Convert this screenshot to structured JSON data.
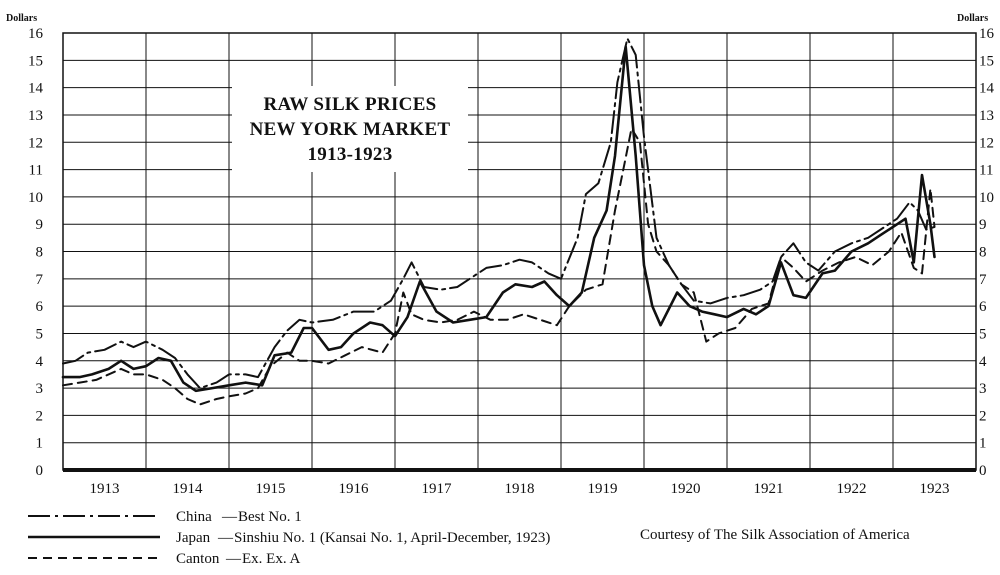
{
  "chart_data": {
    "type": "line",
    "title": [
      "RAW SILK PRICES",
      "NEW YORK MARKET",
      "1913-1923"
    ],
    "ylabel_left": "Dollars",
    "ylabel_right": "Dollars",
    "ylim": [
      0,
      16
    ],
    "yticks": [
      "0",
      "1",
      "2",
      "3",
      "4",
      "5",
      "6",
      "7",
      "8",
      "9",
      "10",
      "11",
      "12",
      "13",
      "14",
      "15",
      "16"
    ],
    "xlim": [
      1913,
      1924
    ],
    "year_labels": [
      "1913",
      "1914",
      "1915",
      "1916",
      "1917",
      "1918",
      "1919",
      "1920",
      "1921",
      "1922",
      "1923"
    ],
    "grid": true,
    "legend_position": "bottom-left",
    "series": [
      {
        "name": "China",
        "label_prefix": "China",
        "label_suffix": "Best No. 1",
        "style": "dash-dot",
        "x": [
          1913.0,
          1913.15,
          1913.3,
          1913.5,
          1913.7,
          1913.85,
          1914.0,
          1914.2,
          1914.35,
          1914.5,
          1914.65,
          1914.85,
          1915.0,
          1915.2,
          1915.35,
          1915.55,
          1915.7,
          1915.85,
          1916.0,
          1916.25,
          1916.5,
          1916.75,
          1916.95,
          1917.1,
          1917.2,
          1917.35,
          1917.55,
          1917.75,
          1917.9,
          1918.1,
          1918.3,
          1918.5,
          1918.65,
          1918.85,
          1919.0,
          1919.2,
          1919.3,
          1919.45,
          1919.6,
          1919.68,
          1919.8,
          1919.9,
          1920.0,
          1920.15,
          1920.3,
          1920.45,
          1920.6,
          1920.8,
          1921.0,
          1921.2,
          1921.4,
          1921.55,
          1921.65,
          1921.8,
          1921.95,
          1922.1,
          1922.3,
          1922.5,
          1922.7,
          1922.9,
          1923.05,
          1923.2,
          1923.3,
          1923.4,
          1923.5
        ],
        "y": [
          3.9,
          4.0,
          4.3,
          4.4,
          4.7,
          4.5,
          4.7,
          4.4,
          4.1,
          3.5,
          3.0,
          3.2,
          3.5,
          3.5,
          3.4,
          4.5,
          5.1,
          5.5,
          5.4,
          5.5,
          5.8,
          5.8,
          6.2,
          7.0,
          7.6,
          6.7,
          6.6,
          6.7,
          7.0,
          7.4,
          7.5,
          7.7,
          7.6,
          7.2,
          7.0,
          8.5,
          10.1,
          10.5,
          12.0,
          14.2,
          15.8,
          15.2,
          12.2,
          8.5,
          7.5,
          6.8,
          6.2,
          6.1,
          6.3,
          6.4,
          6.6,
          6.9,
          7.8,
          8.3,
          7.6,
          7.3,
          8.0,
          8.3,
          8.5,
          8.9,
          9.2,
          9.8,
          9.5,
          8.8,
          8.9
        ]
      },
      {
        "name": "Japan",
        "label_prefix": "Japan",
        "label_suffix": "Sinshiu No. 1 (Kansai No. 1, April-December, 1923)",
        "style": "solid",
        "x": [
          1913.0,
          1913.2,
          1913.35,
          1913.55,
          1913.7,
          1913.85,
          1914.0,
          1914.15,
          1914.3,
          1914.45,
          1914.6,
          1914.8,
          1915.0,
          1915.2,
          1915.4,
          1915.55,
          1915.75,
          1915.9,
          1916.0,
          1916.2,
          1916.35,
          1916.5,
          1916.7,
          1916.85,
          1917.0,
          1917.15,
          1917.3,
          1917.5,
          1917.7,
          1917.9,
          1918.1,
          1918.3,
          1918.45,
          1918.65,
          1918.8,
          1918.95,
          1919.1,
          1919.25,
          1919.4,
          1919.55,
          1919.65,
          1919.78,
          1919.9,
          1920.0,
          1920.1,
          1920.2,
          1920.4,
          1920.55,
          1920.7,
          1920.85,
          1921.0,
          1921.2,
          1921.35,
          1921.5,
          1921.65,
          1921.8,
          1921.95,
          1922.15,
          1922.3,
          1922.5,
          1922.7,
          1922.85,
          1923.0,
          1923.15,
          1923.25,
          1923.35,
          1923.45,
          1923.5
        ],
        "y": [
          3.4,
          3.4,
          3.5,
          3.7,
          4.0,
          3.7,
          3.8,
          4.1,
          4.0,
          3.2,
          2.9,
          3.0,
          3.1,
          3.2,
          3.1,
          4.2,
          4.3,
          5.2,
          5.2,
          4.4,
          4.5,
          5.0,
          5.4,
          5.3,
          4.9,
          5.6,
          6.9,
          5.8,
          5.4,
          5.5,
          5.6,
          6.5,
          6.8,
          6.7,
          6.9,
          6.4,
          6.0,
          6.5,
          8.5,
          9.5,
          11.5,
          15.5,
          11.5,
          7.5,
          6.0,
          5.3,
          6.5,
          6.0,
          5.8,
          5.7,
          5.6,
          5.9,
          5.7,
          6.0,
          7.6,
          6.4,
          6.3,
          7.2,
          7.3,
          8.0,
          8.3,
          8.6,
          8.9,
          9.2,
          7.6,
          10.8,
          9.0,
          7.8
        ]
      },
      {
        "name": "Canton",
        "label_prefix": "Canton",
        "label_suffix": "Ex. Ex. A",
        "style": "dashed",
        "x": [
          1913.0,
          1913.2,
          1913.4,
          1913.55,
          1913.7,
          1913.85,
          1914.0,
          1914.2,
          1914.35,
          1914.5,
          1914.65,
          1914.85,
          1915.0,
          1915.2,
          1915.35,
          1915.5,
          1915.7,
          1915.85,
          1916.0,
          1916.2,
          1916.4,
          1916.6,
          1916.85,
          1917.0,
          1917.1,
          1917.2,
          1917.35,
          1917.55,
          1917.75,
          1917.95,
          1918.15,
          1918.35,
          1918.55,
          1918.75,
          1918.95,
          1919.1,
          1919.3,
          1919.5,
          1919.65,
          1919.75,
          1919.85,
          1919.95,
          1920.05,
          1920.15,
          1920.3,
          1920.45,
          1920.6,
          1920.75,
          1920.9,
          1921.1,
          1921.3,
          1921.5,
          1921.65,
          1921.8,
          1921.95,
          1922.15,
          1922.35,
          1922.55,
          1922.75,
          1922.95,
          1923.1,
          1923.25,
          1923.35,
          1923.45,
          1923.5
        ],
        "y": [
          3.1,
          3.2,
          3.3,
          3.5,
          3.7,
          3.5,
          3.5,
          3.3,
          3.0,
          2.6,
          2.4,
          2.6,
          2.7,
          2.8,
          3.0,
          3.8,
          4.3,
          4.0,
          4.0,
          3.9,
          4.2,
          4.5,
          4.3,
          5.0,
          6.5,
          5.7,
          5.5,
          5.4,
          5.5,
          5.8,
          5.5,
          5.5,
          5.7,
          5.5,
          5.3,
          6.0,
          6.6,
          6.8,
          9.5,
          11.0,
          12.5,
          12.0,
          9.0,
          8.0,
          7.5,
          6.8,
          6.5,
          4.7,
          5.0,
          5.2,
          5.9,
          6.1,
          7.8,
          7.4,
          6.9,
          7.3,
          7.6,
          7.8,
          7.5,
          8.0,
          8.7,
          7.4,
          7.2,
          10.3,
          8.9
        ]
      }
    ],
    "footnote": "Courtesy of The Silk Association of America"
  }
}
